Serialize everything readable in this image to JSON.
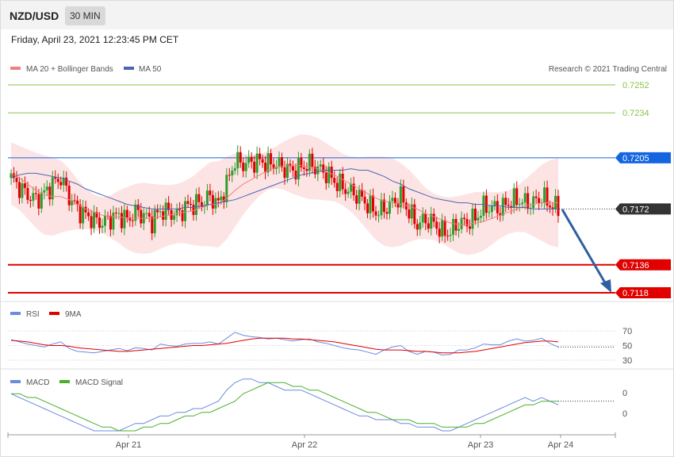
{
  "header": {
    "symbol": "NZD/USD",
    "timeframe": "30 MIN",
    "datetime": "Friday, April 23, 2021 12:23:45 PM CET"
  },
  "legend": {
    "ma20_bb": "MA 20 + Bollinger Bands",
    "ma50": "MA 50",
    "credit": "Research © 2021 Trading Central",
    "rsi": "RSI",
    "rsi_ma": "9MA",
    "macd": "MACD",
    "macd_signal": "MACD Signal"
  },
  "colors": {
    "bull": "#2e9e2e",
    "bear": "#e00000",
    "ma20": "#f08080",
    "band_fill": "#fde4e4",
    "ma50": "#4a68b0",
    "resistance_green": "#8bc34a",
    "pivot_blue": "#1565e0",
    "support_red": "#e00000",
    "rsi": "#6b8be0",
    "macd_signal": "#4caf2a",
    "arrow": "#2e5f9e"
  },
  "chart_data": {
    "type": "candlestick",
    "price_levels": [
      {
        "value": "0.7252",
        "kind": "resistance"
      },
      {
        "value": "0.7234",
        "kind": "resistance"
      },
      {
        "value": "0.7205",
        "kind": "pivot"
      },
      {
        "value": "0.7172",
        "kind": "current"
      },
      {
        "value": "0.7136",
        "kind": "support"
      },
      {
        "value": "0.7118",
        "kind": "support"
      }
    ],
    "x_ticks": [
      "Apr 21",
      "Apr 22",
      "Apr 23",
      "Apr 24"
    ],
    "rsi_ticks": [
      "70",
      "50",
      "30"
    ],
    "macd_ticks": [
      "0",
      "0"
    ],
    "price_path": [
      0.7192,
      0.7186,
      0.7181,
      0.7178,
      0.7182,
      0.7188,
      0.7192,
      0.718,
      0.7172,
      0.7168,
      0.7165,
      0.7163,
      0.7166,
      0.7168,
      0.7165,
      0.717,
      0.7168,
      0.7164,
      0.7171,
      0.717,
      0.7168,
      0.7173,
      0.7175,
      0.7176,
      0.718,
      0.7175,
      0.7188,
      0.7203,
      0.7201,
      0.7202,
      0.7203,
      0.7201,
      0.7201,
      0.7198,
      0.7197,
      0.7199,
      0.7201,
      0.7198,
      0.7195,
      0.719,
      0.7186,
      0.7183,
      0.718,
      0.7175,
      0.717,
      0.7172,
      0.7176,
      0.718,
      0.717,
      0.7162,
      0.7165,
      0.7163,
      0.7157,
      0.7157,
      0.7163,
      0.7163,
      0.7166,
      0.7173,
      0.7173,
      0.7172,
      0.7176,
      0.7178,
      0.7176,
      0.7176,
      0.718,
      0.7175,
      0.7172
    ],
    "ma20": [
      0.7195,
      0.7192,
      0.7188,
      0.7184,
      0.7181,
      0.718,
      0.718,
      0.7178,
      0.7175,
      0.7172,
      0.717,
      0.7168,
      0.7167,
      0.7167,
      0.7166,
      0.7166,
      0.7166,
      0.7166,
      0.7167,
      0.7168,
      0.7169,
      0.717,
      0.7171,
      0.7173,
      0.7175,
      0.7175,
      0.7179,
      0.7184,
      0.7188,
      0.7191,
      0.7194,
      0.7197,
      0.7199,
      0.72,
      0.72,
      0.72,
      0.7199,
      0.7198,
      0.7196,
      0.7194,
      0.7191,
      0.7188,
      0.7185,
      0.7182,
      0.7179,
      0.7177,
      0.7176,
      0.7175,
      0.7174,
      0.7172,
      0.7169,
      0.7167,
      0.7165,
      0.7163,
      0.7162,
      0.7162,
      0.7163,
      0.7164,
      0.7166,
      0.7168,
      0.717,
      0.7172,
      0.7174,
      0.7175,
      0.7176,
      0.7176,
      0.7176
    ],
    "ma50": [
      0.7192,
      0.7194,
      0.7195,
      0.7195,
      0.7194,
      0.7193,
      0.7192,
      0.719,
      0.7188,
      0.7185,
      0.7183,
      0.7181,
      0.7179,
      0.7177,
      0.7175,
      0.7174,
      0.7173,
      0.7172,
      0.7172,
      0.7172,
      0.7172,
      0.7173,
      0.7173,
      0.7174,
      0.7175,
      0.7176,
      0.7177,
      0.7178,
      0.718,
      0.7182,
      0.7184,
      0.7186,
      0.7188,
      0.719,
      0.7192,
      0.7194,
      0.7195,
      0.7196,
      0.7197,
      0.7197,
      0.7197,
      0.7198,
      0.7197,
      0.7197,
      0.7195,
      0.7193,
      0.719,
      0.7188,
      0.7185,
      0.7183,
      0.7181,
      0.7179,
      0.7178,
      0.7177,
      0.7176,
      0.7176,
      0.7175,
      0.7175,
      0.7174,
      0.7174,
      0.7173,
      0.7173,
      0.7173,
      0.7172,
      0.7172,
      0.7172,
      0.7172
    ],
    "rsi": [
      58,
      55,
      52,
      50,
      48,
      52,
      55,
      46,
      42,
      41,
      40,
      42,
      44,
      46,
      43,
      47,
      46,
      44,
      52,
      50,
      49,
      52,
      53,
      53,
      55,
      52,
      60,
      68,
      64,
      62,
      61,
      59,
      60,
      58,
      56,
      58,
      59,
      55,
      53,
      50,
      47,
      45,
      44,
      41,
      38,
      44,
      48,
      50,
      42,
      38,
      42,
      41,
      37,
      38,
      44,
      44,
      47,
      52,
      51,
      51,
      56,
      59,
      56,
      57,
      60,
      53,
      48
    ],
    "rsi_ma": [
      57,
      56,
      55,
      53,
      51,
      50,
      50,
      49,
      47,
      46,
      45,
      44,
      43,
      42,
      42,
      43,
      44,
      45,
      46,
      47,
      48,
      49,
      50,
      50,
      51,
      52,
      53,
      55,
      57,
      59,
      60,
      60,
      60,
      60,
      59,
      59,
      58,
      57,
      56,
      55,
      53,
      51,
      49,
      47,
      45,
      44,
      44,
      44,
      43,
      42,
      42,
      41,
      40,
      40,
      40,
      41,
      42,
      44,
      46,
      48,
      50,
      52,
      54,
      55,
      56,
      56,
      55
    ],
    "macd": [
      0.0004,
      0.0003,
      0.0002,
      0.0001,
      0.0,
      -0.0001,
      -0.0002,
      -0.0003,
      -0.0004,
      -0.0005,
      -0.0006,
      -0.0006,
      -0.0006,
      -0.0006,
      -0.0005,
      -0.0004,
      -0.0004,
      -0.0003,
      -0.0002,
      -0.0002,
      -0.0001,
      -0.0001,
      0.0,
      0.0,
      0.0001,
      0.0002,
      0.0005,
      0.0007,
      0.0008,
      0.0008,
      0.0007,
      0.0007,
      0.0006,
      0.0005,
      0.0005,
      0.0005,
      0.0004,
      0.0003,
      0.0002,
      0.0001,
      0.0,
      -0.0001,
      -0.0002,
      -0.0002,
      -0.0003,
      -0.0003,
      -0.0003,
      -0.0004,
      -0.0004,
      -0.0005,
      -0.0005,
      -0.0005,
      -0.0006,
      -0.0006,
      -0.0005,
      -0.0004,
      -0.0003,
      -0.0002,
      -0.0001,
      0.0,
      0.0001,
      0.0002,
      0.0003,
      0.0002,
      0.0003,
      0.0002,
      0.0001
    ],
    "macd_signal": [
      0.0004,
      0.0004,
      0.0003,
      0.0003,
      0.0002,
      0.0001,
      0.0,
      -0.0001,
      -0.0002,
      -0.0003,
      -0.0004,
      -0.0005,
      -0.0005,
      -0.0006,
      -0.0006,
      -0.0006,
      -0.0005,
      -0.0005,
      -0.0004,
      -0.0004,
      -0.0003,
      -0.0002,
      -0.0002,
      -0.0001,
      -0.0001,
      0.0,
      0.0001,
      0.0002,
      0.0004,
      0.0005,
      0.0006,
      0.0007,
      0.0007,
      0.0007,
      0.0006,
      0.0006,
      0.0005,
      0.0005,
      0.0004,
      0.0003,
      0.0002,
      0.0001,
      0.0,
      -0.0001,
      -0.0001,
      -0.0002,
      -0.0003,
      -0.0003,
      -0.0003,
      -0.0004,
      -0.0004,
      -0.0004,
      -0.0005,
      -0.0005,
      -0.0005,
      -0.0005,
      -0.0004,
      -0.0004,
      -0.0003,
      -0.0002,
      -0.0001,
      0.0,
      0.0001,
      0.0001,
      0.0002,
      0.0002,
      0.0002
    ]
  }
}
